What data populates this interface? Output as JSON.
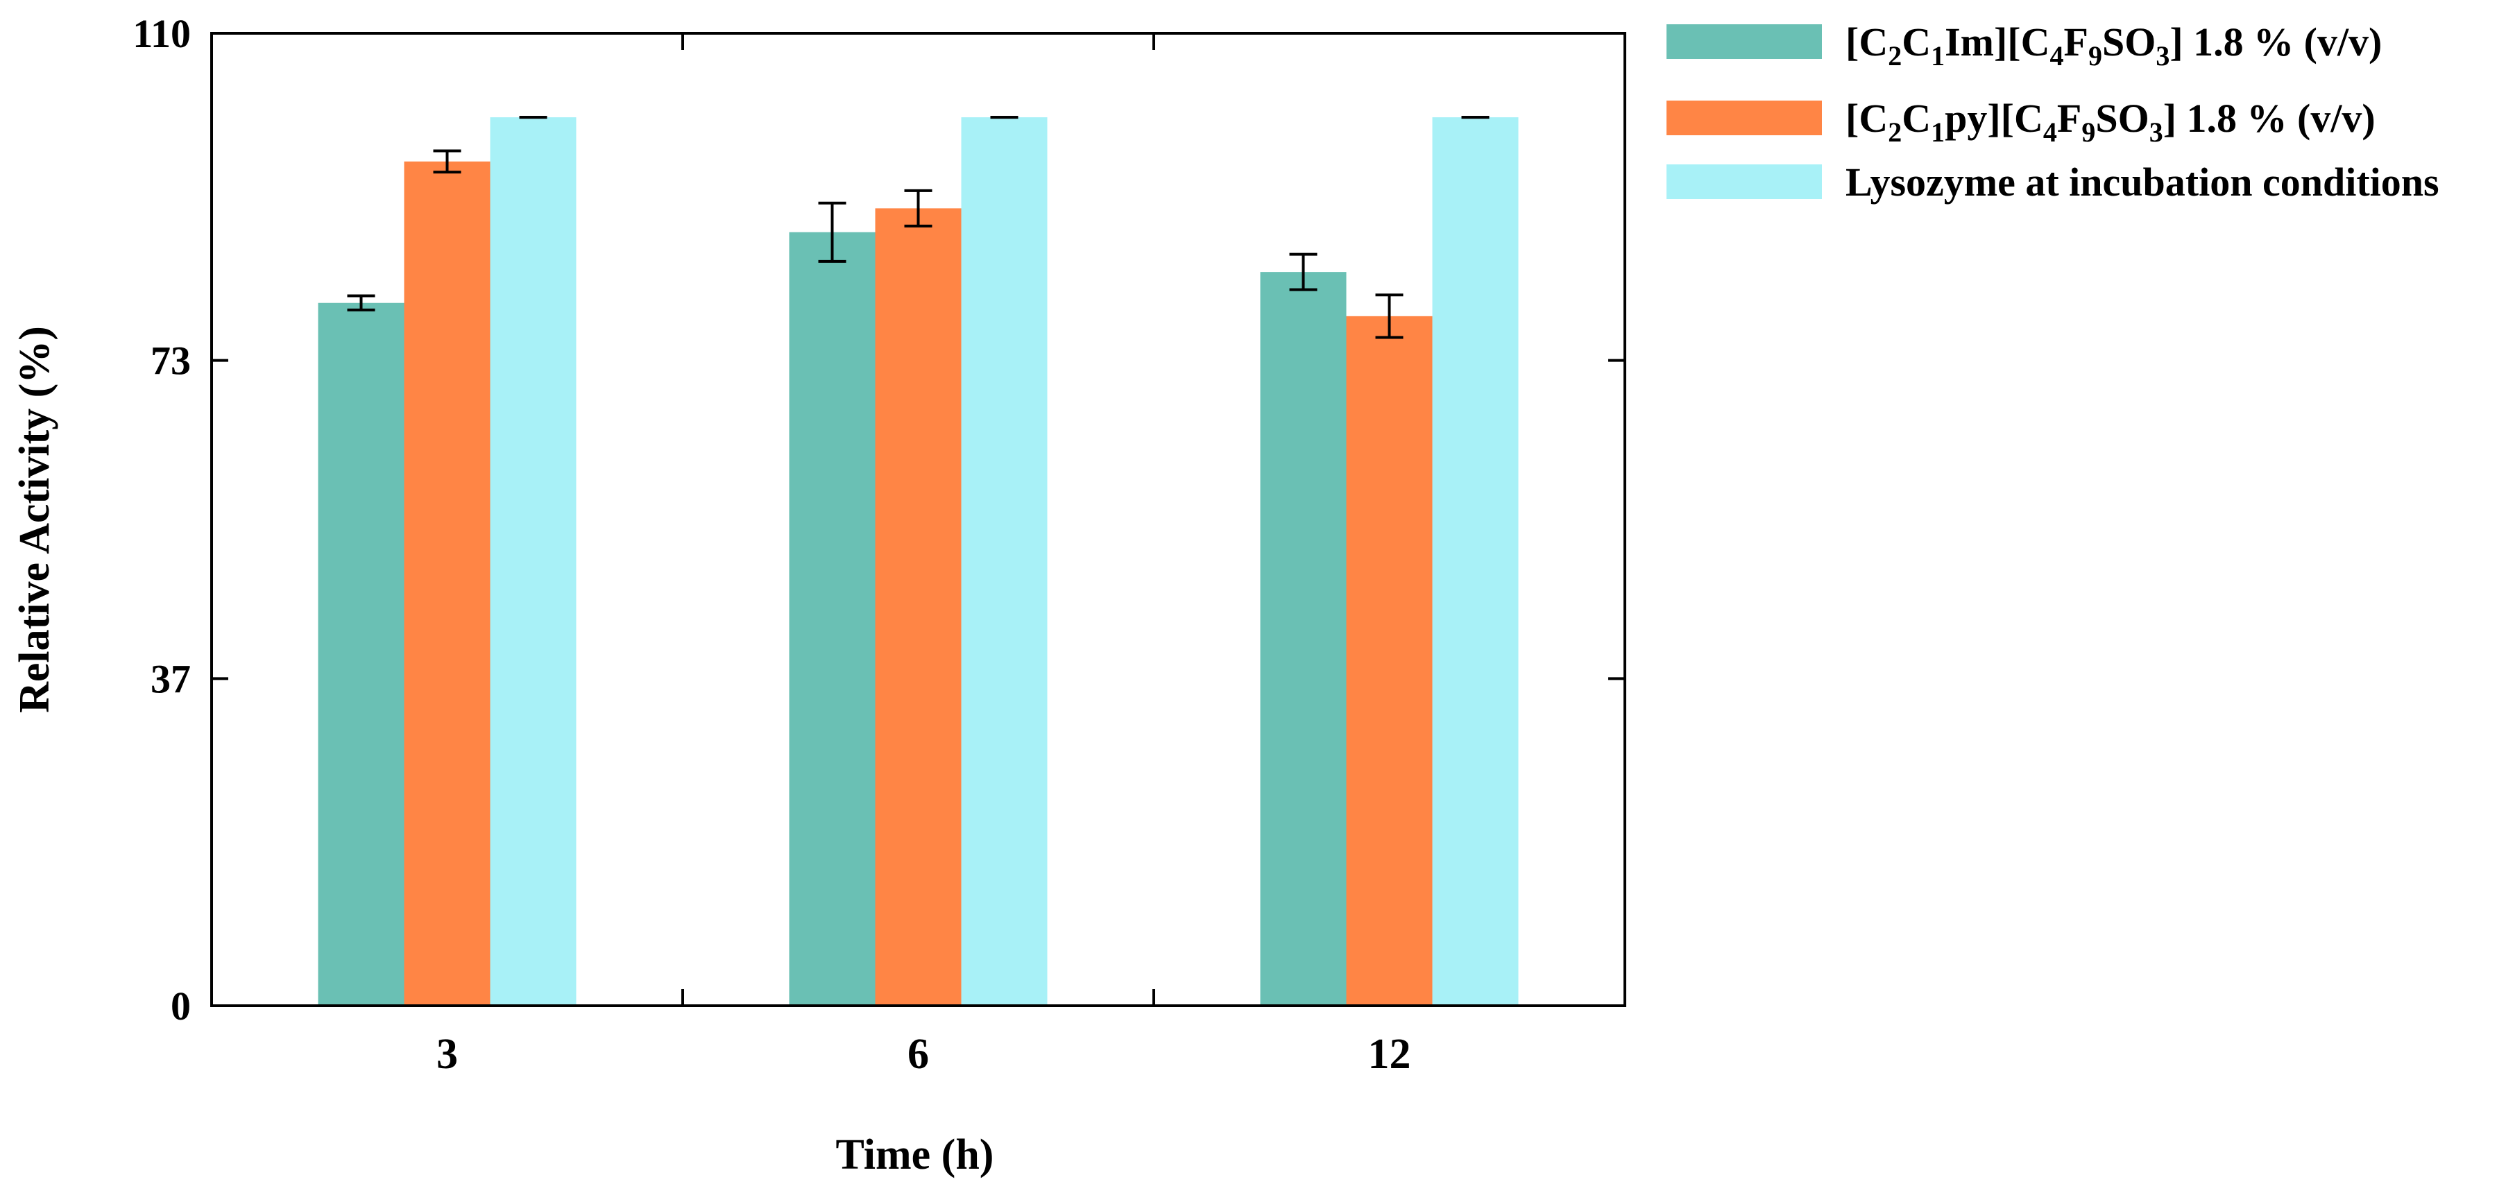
{
  "chart_data": {
    "type": "bar",
    "title": "",
    "xlabel": "Time (h)",
    "ylabel": "Relative Activity (%)",
    "ylim": [
      0,
      110
    ],
    "yticks": [
      "0",
      "37",
      "73",
      "110"
    ],
    "categories": [
      "3",
      "6",
      "12"
    ],
    "grid": false,
    "legend_position": "outside-right-top",
    "series": [
      {
        "name": "[C2C1Im][C4F9SO3] 1.8 % (v/v)",
        "legend_parts": [
          [
            "[C",
            ""
          ],
          [
            "2",
            "sub"
          ],
          [
            "C",
            ""
          ],
          [
            "1",
            "sub"
          ],
          [
            "Im][C",
            ""
          ],
          [
            "4",
            "sub"
          ],
          [
            "F",
            ""
          ],
          [
            "9",
            "sub"
          ],
          [
            "SO",
            ""
          ],
          [
            "3",
            "sub"
          ],
          [
            "] 1.8 % (v/v)",
            ""
          ]
        ],
        "color": "#6ac0b4",
        "values": [
          79.5,
          87.5,
          83
        ],
        "errors": [
          0.8,
          3.3,
          2
        ]
      },
      {
        "name": "[C2C1py][C4F9SO3] 1.8 % (v/v)",
        "legend_parts": [
          [
            "[C",
            ""
          ],
          [
            "2",
            "sub"
          ],
          [
            "C",
            ""
          ],
          [
            "1",
            "sub"
          ],
          [
            "py][C",
            ""
          ],
          [
            "4",
            "sub"
          ],
          [
            "F",
            ""
          ],
          [
            "9",
            "sub"
          ],
          [
            "SO",
            ""
          ],
          [
            "3",
            "sub"
          ],
          [
            "] 1.8 % (v/v)",
            ""
          ]
        ],
        "color": "#ff8545",
        "values": [
          95.5,
          90.2,
          78
        ],
        "errors": [
          1.2,
          2,
          2.4
        ]
      },
      {
        "name": "Lysozyme at incubation conditions",
        "legend_parts": [
          [
            "Lysozyme at incubation conditions",
            ""
          ]
        ],
        "color": "#a8f1f7",
        "values": [
          100.5,
          100.5,
          100.5
        ],
        "errors": [
          0,
          0,
          0
        ]
      }
    ]
  }
}
